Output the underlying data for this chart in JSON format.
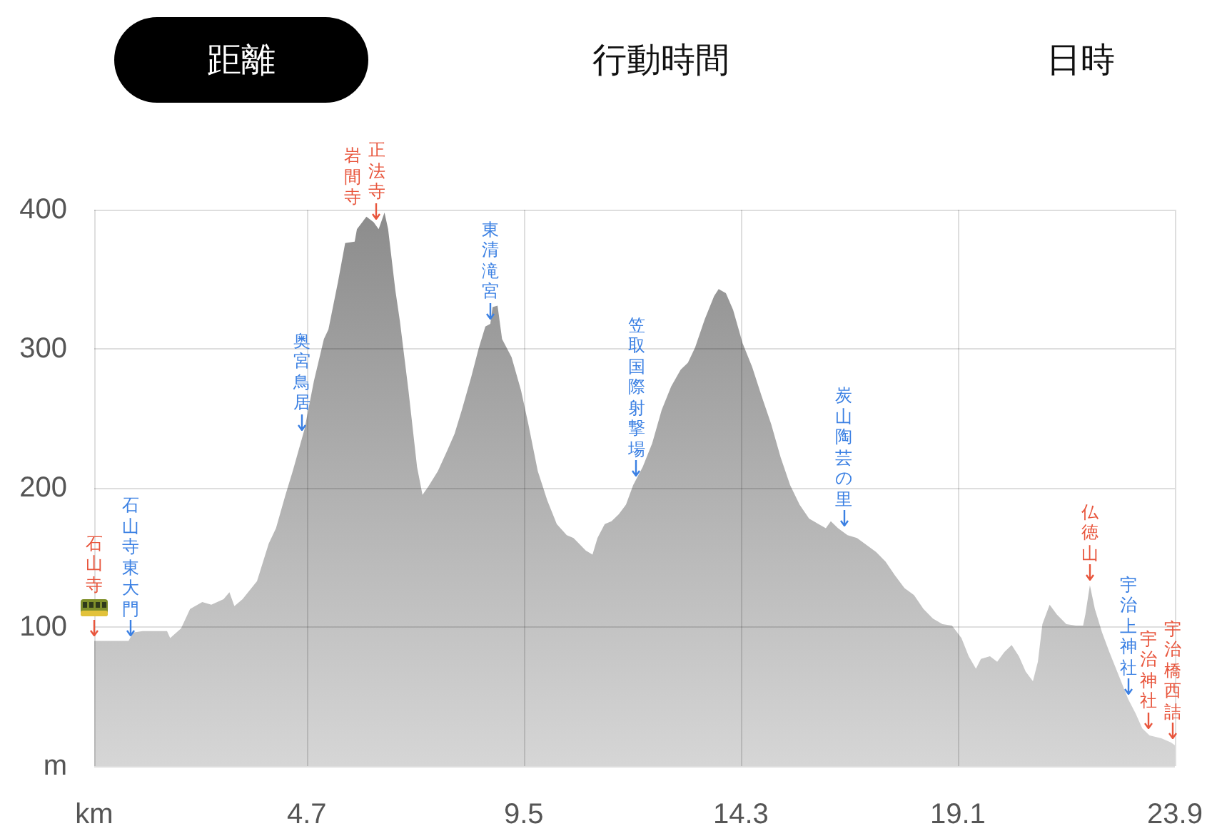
{
  "chart_data": {
    "type": "area",
    "x": [
      0,
      0.76,
      0.86,
      1.07,
      1.61,
      1.68,
      1.92,
      2.12,
      2.39,
      2.59,
      2.86,
      2.99,
      3.1,
      3.28,
      3.6,
      3.86,
      4.02,
      4.23,
      4.39,
      4.65,
      4.86,
      5.08,
      5.18,
      5.39,
      5.55,
      5.76,
      5.81,
      6.02,
      6.18,
      6.29,
      6.42,
      6.5,
      6.66,
      6.76,
      6.95,
      7.14,
      7.26,
      7.39,
      7.6,
      7.81,
      7.97,
      8.13,
      8.34,
      8.5,
      8.65,
      8.76,
      8.81,
      8.92,
      9.02,
      9.23,
      9.44,
      9.6,
      9.81,
      10.02,
      10.23,
      10.45,
      10.6,
      10.87,
      11.02,
      11.13,
      11.29,
      11.44,
      11.6,
      11.76,
      11.92,
      12.13,
      12.34,
      12.55,
      12.76,
      12.97,
      13.13,
      13.29,
      13.5,
      13.71,
      13.81,
      13.97,
      14.13,
      14.34,
      14.55,
      14.76,
      14.97,
      15.18,
      15.39,
      15.6,
      15.81,
      16.02,
      16.18,
      16.29,
      16.45,
      16.66,
      16.87,
      17.08,
      17.29,
      17.5,
      17.71,
      17.92,
      18.13,
      18.34,
      18.55,
      18.76,
      18.97,
      19.18,
      19.34,
      19.5,
      19.61,
      19.81,
      19.97,
      20.13,
      20.29,
      20.45,
      20.6,
      20.76,
      20.87,
      20.97,
      21.13,
      21.29,
      21.5,
      21.71,
      21.87,
      21.92,
      22.02,
      22.13,
      22.29,
      22.45,
      22.66,
      22.87,
      23.03,
      23.18,
      23.34,
      23.6,
      23.81,
      23.9
    ],
    "values": [
      90,
      90,
      96,
      97,
      97,
      92,
      99,
      113,
      118,
      116,
      120,
      125,
      115,
      120,
      133,
      160,
      171,
      195,
      212,
      242,
      277,
      307,
      314,
      348,
      376,
      377,
      386,
      395,
      391,
      386,
      398,
      386,
      342,
      320,
      270,
      215,
      195,
      201,
      212,
      227,
      239,
      256,
      280,
      300,
      316,
      318,
      330,
      331,
      307,
      294,
      270,
      246,
      212,
      191,
      174,
      166,
      164,
      155,
      152,
      164,
      174,
      176,
      181,
      188,
      202,
      215,
      232,
      256,
      273,
      285,
      290,
      301,
      321,
      338,
      343,
      340,
      328,
      304,
      287,
      266,
      246,
      222,
      202,
      188,
      178,
      174,
      171,
      176,
      171,
      166,
      164,
      159,
      154,
      147,
      137,
      128,
      123,
      113,
      106,
      102,
      101,
      92,
      79,
      70,
      77,
      79,
      75,
      82,
      87,
      79,
      68,
      61,
      75,
      102,
      116,
      109,
      102,
      101,
      101,
      109,
      130,
      113,
      96,
      82,
      65,
      48,
      38,
      27,
      22,
      20,
      17,
      15
    ],
    "color": "#8c8c8c",
    "xlim": [
      0,
      23.9
    ],
    "xticks": [
      {
        "value": 0,
        "label": "km"
      },
      4.7,
      9.5,
      14.3,
      19.1,
      23.9
    ],
    "ylim": [
      0,
      400
    ],
    "yticks": [
      {
        "value": 0,
        "label": "m"
      },
      100,
      200,
      300,
      400
    ],
    "grid": true,
    "annotations": [
      "距離",
      "行動時間",
      "日時",
      {
        "text": "石山寺",
        "x": 0,
        "y": 90
      },
      {
        "text": "石山寺東大門",
        "x": 0.8,
        "y": 90
      },
      {
        "text": "奥宮鳥居",
        "x": 4.6,
        "y": 238
      },
      {
        "text": "正法寺",
        "x": 6.25,
        "y": 390
      },
      {
        "text": "岩間寺",
        "x": 6.25,
        "y": 390
      },
      {
        "text": "東清滝宮",
        "x": 8.76,
        "y": 318
      },
      {
        "text": "笠取国際射撃場",
        "x": 11.99,
        "y": 205
      },
      {
        "text": "炭山陶芸の里",
        "x": 16.58,
        "y": 169
      },
      {
        "text": "仏徳山",
        "x": 22.02,
        "y": 130
      },
      {
        "text": "宇治上神社",
        "x": 22.87,
        "y": 48
      },
      {
        "text": "宇治神社",
        "x": 23.31,
        "y": 24
      },
      {
        "text": "宇治橋西詰",
        "x": 23.85,
        "y": 16
      }
    ]
  }
}
